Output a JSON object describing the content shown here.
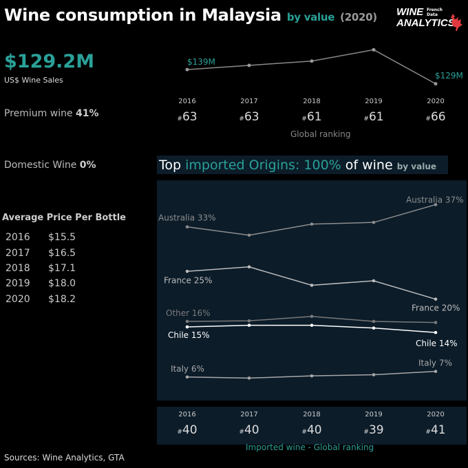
{
  "header": {
    "title_main": "Wine consumption in Malaysia",
    "title_by": "by value",
    "title_year": "(2020)"
  },
  "logo": {
    "line1": "WINE",
    "line2": "ANALYTICS",
    "sub1": "French",
    "sub2": "Data"
  },
  "kpi": {
    "value": "$129.2M",
    "label": "US$ Wine Sales"
  },
  "premium": {
    "label": "Premium wine",
    "value": "41%"
  },
  "domestic": {
    "label": "Domestic Wine",
    "value": "0%"
  },
  "avg_price": {
    "title": "Average Price Per Bottle",
    "rows": [
      {
        "year": "2016",
        "price": "$15.5"
      },
      {
        "year": "2017",
        "price": "$16.5"
      },
      {
        "year": "2018",
        "price": "$17.1"
      },
      {
        "year": "2019",
        "price": "$18.0"
      },
      {
        "year": "2020",
        "price": "$18.2"
      }
    ]
  },
  "sales_chart": {
    "start_label": "$139M",
    "end_label": "$129M",
    "caption": "Global ranking"
  },
  "imports": {
    "title_a": "Top ",
    "title_b": "imported Origins: 100%",
    "title_c": " of wine ",
    "title_d": "by value",
    "caption": "Imported wine - Global ranking"
  },
  "footer": "Sources: Wine Analytics, GTA",
  "chart_data": [
    {
      "type": "line",
      "title": "",
      "x": [
        "2016",
        "2017",
        "2018",
        "2019",
        "2020"
      ],
      "series": [
        {
          "name": "",
          "values": [
            139,
            142,
            145,
            153,
            129
          ],
          "color": "#8a8a8a"
        }
      ],
      "ylim": [
        125,
        158
      ],
      "value_labels": {
        "first": "$139M",
        "last": "$129M"
      },
      "rank_prefix": "#",
      "global_ranking": [
        "63",
        "63",
        "61",
        "61",
        "66"
      ],
      "xlabel": "Global ranking"
    },
    {
      "type": "line",
      "title": "Top imported Origins: 100% of wine by value",
      "x": [
        "2016",
        "2017",
        "2018",
        "2019",
        "2020"
      ],
      "ylim": [
        3,
        41
      ],
      "series": [
        {
          "name": "Australia",
          "values": [
            33,
            31.5,
            33.5,
            33.8,
            37
          ],
          "start_label": "Australia 33%",
          "end_label": "Australia 37%",
          "color": "#8e8e8e"
        },
        {
          "name": "France",
          "values": [
            25,
            25.8,
            22.5,
            23.3,
            20
          ],
          "start_label": "France 25%",
          "end_label": "France 20%",
          "color": "#bdbdbd"
        },
        {
          "name": "Other",
          "values": [
            16,
            16.1,
            16.9,
            16,
            15.8
          ],
          "start_label": "Other 16%",
          "end_label": "",
          "color": "#7a7a7a"
        },
        {
          "name": "Chile",
          "values": [
            15,
            15.3,
            15.3,
            14.8,
            14
          ],
          "start_label": "Chile 15%",
          "end_label": "Chile 14%",
          "color": "#ffffff"
        },
        {
          "name": "Italy",
          "values": [
            6,
            5.8,
            6.2,
            6.4,
            7
          ],
          "start_label": "Italy 6%",
          "end_label": "Italy 7%",
          "color": "#a8a8a8"
        }
      ],
      "rank_prefix": "#",
      "global_ranking": [
        "40",
        "40",
        "40",
        "39",
        "41"
      ],
      "xlabel": "Imported wine - Global ranking"
    }
  ]
}
